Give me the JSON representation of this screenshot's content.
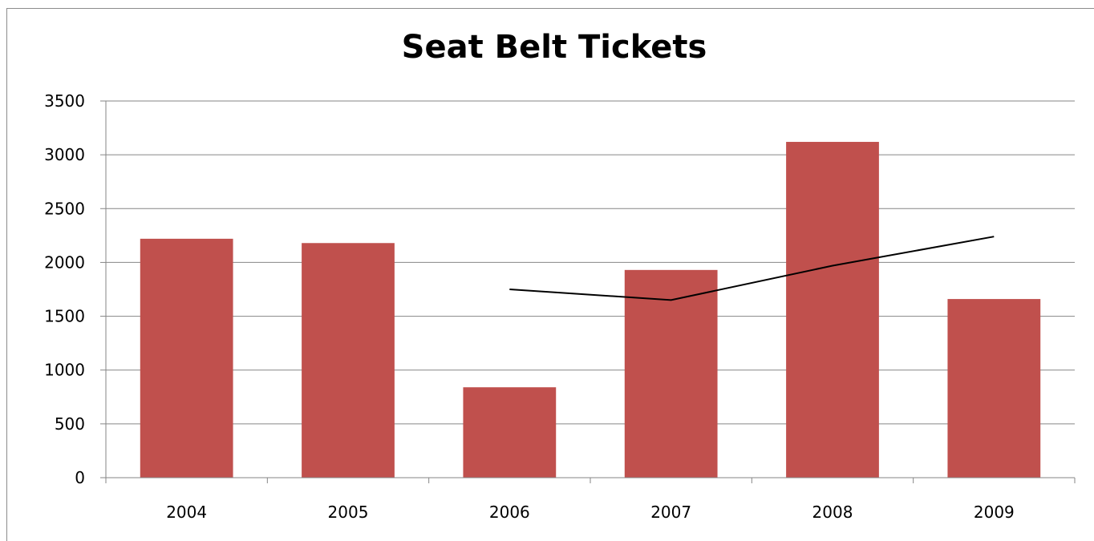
{
  "chart_data": {
    "type": "bar",
    "title": "Seat Belt Tickets",
    "xlabel": "",
    "ylabel": "",
    "categories": [
      "2004",
      "2005",
      "2006",
      "2007",
      "2008",
      "2009"
    ],
    "series": [
      {
        "type": "bar",
        "values": [
          2220,
          2180,
          840,
          1930,
          3120,
          1660
        ],
        "color": "#c0504d"
      },
      {
        "type": "line",
        "x": [
          "2006",
          "2007",
          "2008",
          "2009"
        ],
        "values": [
          1750,
          1650,
          1970,
          2240
        ],
        "color": "#000000"
      }
    ],
    "ylim": [
      0,
      3500
    ],
    "yticks": [
      0,
      500,
      1000,
      1500,
      2000,
      2500,
      3000,
      3500
    ],
    "grid": true,
    "legend": "none"
  }
}
